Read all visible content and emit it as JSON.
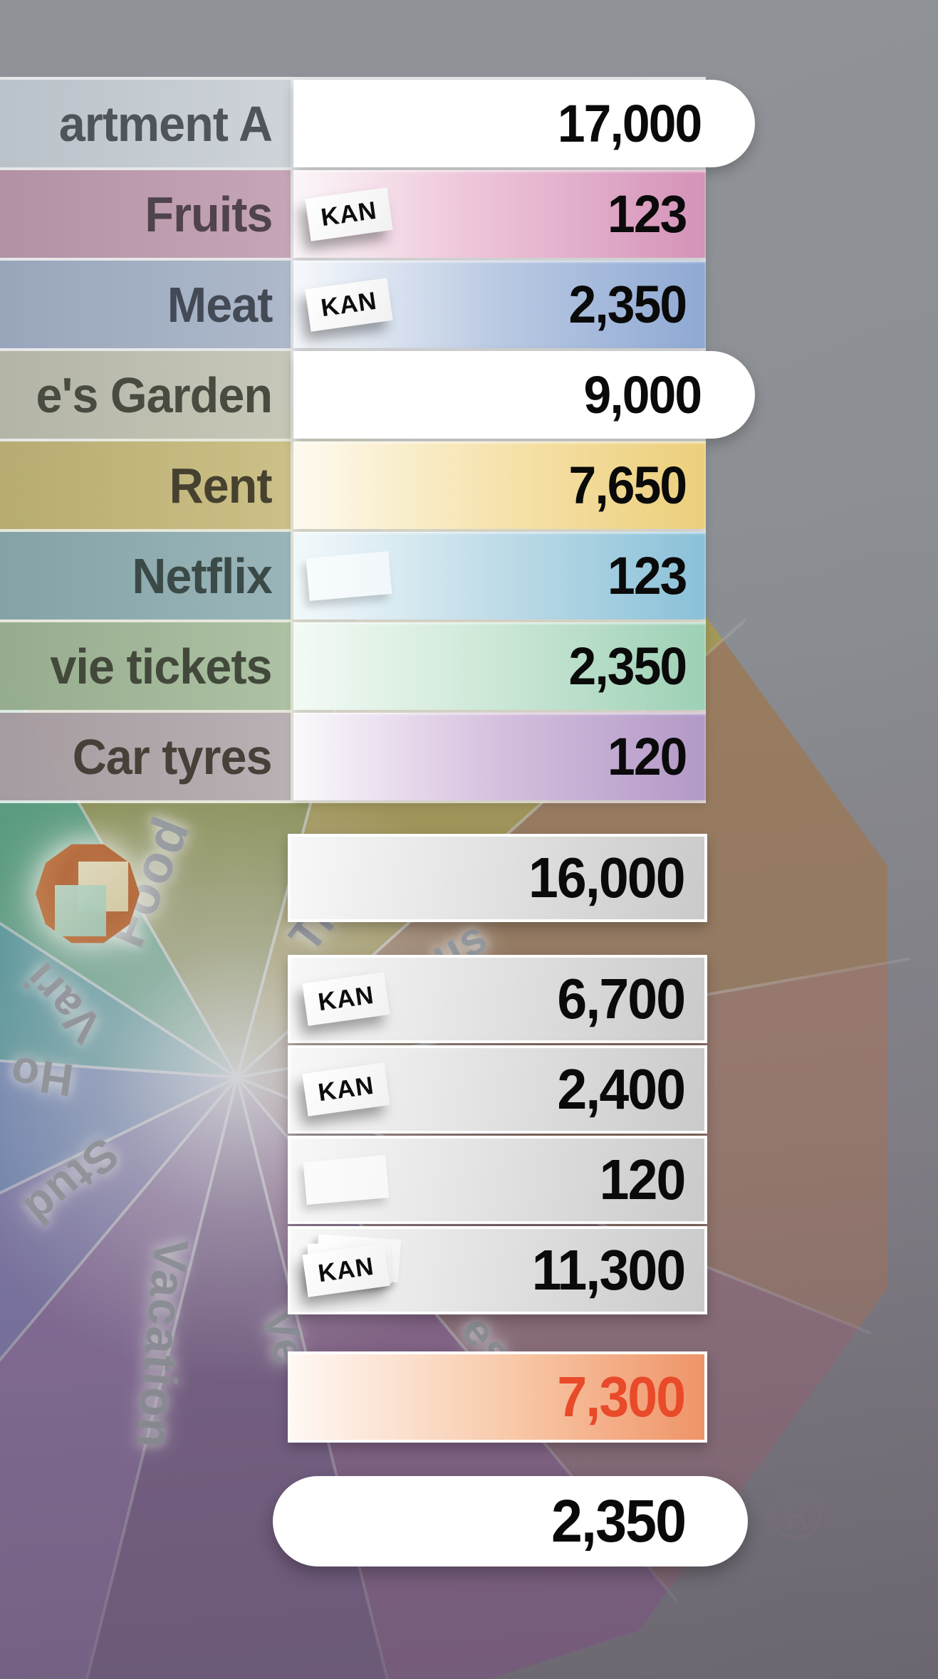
{
  "wheel": {
    "labels": [
      {
        "text": "Food"
      },
      {
        "text": "Vari"
      },
      {
        "text": "Ho"
      },
      {
        "text": "Stud"
      },
      {
        "text": "Vacation"
      },
      {
        "text": "Ve"
      },
      {
        "text": "Tr"
      },
      {
        "text": "us"
      },
      {
        "text": "es"
      }
    ]
  },
  "tag_label": "KAN",
  "table": {
    "rows": [
      {
        "label": "artment A",
        "value": "17,000"
      },
      {
        "label": "Fruits",
        "value": "123"
      },
      {
        "label": "Meat",
        "value": "2,350"
      },
      {
        "label": "e's Garden",
        "value": "9,000"
      },
      {
        "label": "Rent",
        "value": "7,650"
      },
      {
        "label": "Netflix",
        "value": "123"
      },
      {
        "label": "vie tickets",
        "value": "2,350"
      },
      {
        "label": "Car tyres",
        "value": "120"
      }
    ]
  },
  "summary": {
    "rows": [
      {
        "value": "16,000"
      },
      {
        "value": "6,700"
      },
      {
        "value": "2,400"
      },
      {
        "value": "120"
      },
      {
        "value": "11,300"
      }
    ]
  },
  "totals": {
    "expense": "7,300",
    "balance": "2,350"
  },
  "registered_mark": "®",
  "colors": {
    "expense_text": "#e84a2a",
    "tag_bg": "#ffffff",
    "logo_orange": "#c77a41"
  }
}
